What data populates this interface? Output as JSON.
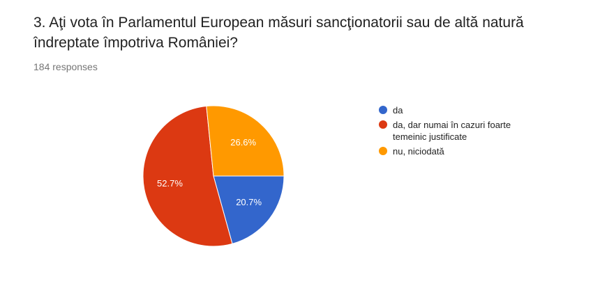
{
  "chart_data": {
    "type": "pie",
    "title": "3. Aţi vota în Parlamentul European măsuri sancţionatorii sau de altă natură îndreptate împotriva României?",
    "subtitle": "184 responses",
    "categories": [
      "da",
      "da, dar numai în cazuri foarte temeinic justificate",
      "nu, niciodată"
    ],
    "values": [
      20.7,
      52.7,
      26.6
    ],
    "value_labels": [
      "20.7%",
      "52.7%",
      "26.6%"
    ],
    "colors": [
      "#3366cc",
      "#dc3912",
      "#ff9900"
    ]
  }
}
